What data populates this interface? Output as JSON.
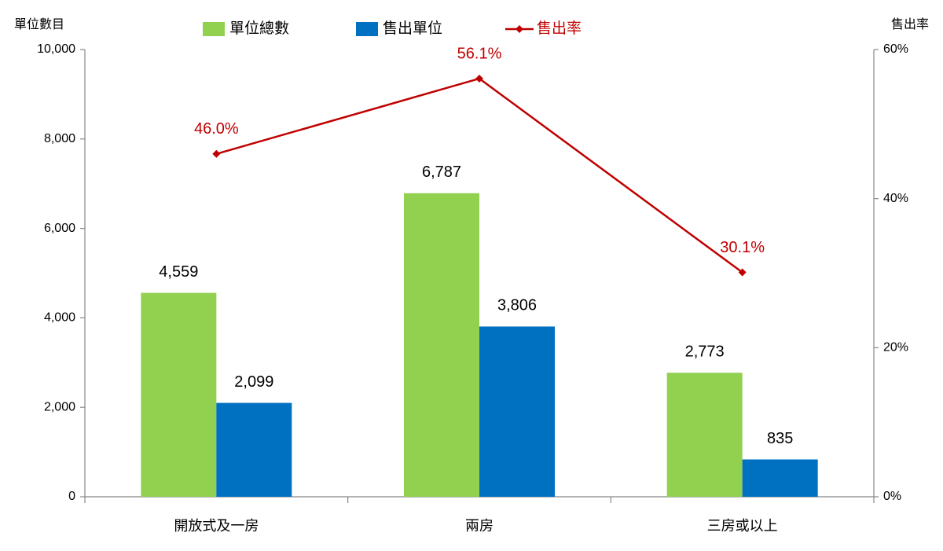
{
  "chart_data": {
    "type": "bar",
    "y_label": "單位數目",
    "y2_label": "售出率",
    "categories": [
      "開放式及一房",
      "兩房",
      "三房或以上"
    ],
    "series": [
      {
        "name": "單位總數",
        "color": "#92d050",
        "values": [
          4559,
          6787,
          2773
        ],
        "value_labels": [
          "4,559",
          "6,787",
          "2,773"
        ]
      },
      {
        "name": "售出單位",
        "color": "#0070c0",
        "values": [
          2099,
          3806,
          835
        ],
        "value_labels": [
          "2,099",
          "3,806",
          "835"
        ]
      },
      {
        "name": "售出率",
        "type": "line",
        "axis": "y2",
        "color": "#c00000",
        "values": [
          46.0,
          56.1,
          30.1
        ],
        "value_labels": [
          "46.0%",
          "56.1%",
          "30.1%"
        ]
      }
    ],
    "ylim": [
      0,
      10000
    ],
    "yticks": [
      0,
      {
        "value": 2000,
        "label": "2,000"
      },
      {
        "value": 4000,
        "label": "4,000"
      },
      {
        "value": 6000,
        "label": "6,000"
      },
      {
        "value": 8000,
        "label": "8,000"
      },
      {
        "value": 10000,
        "label": "10,000"
      }
    ],
    "y2lim": [
      0,
      60
    ],
    "y2ticks": [
      {
        "value": 0,
        "label": "0%"
      },
      {
        "value": 20,
        "label": "20%"
      },
      {
        "value": 40,
        "label": "40%"
      },
      {
        "value": 60,
        "label": "60%"
      }
    ],
    "grid": false
  }
}
